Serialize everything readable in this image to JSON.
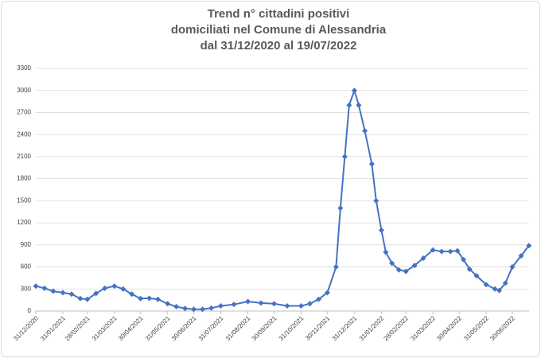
{
  "chart_data": {
    "type": "line",
    "title": [
      "Trend n° cittadini positivi",
      "domiciliati nel Comune di Alessandria",
      "dal 31/12/2020 al 19/07/2022"
    ],
    "x": [
      "2020-12-31",
      "2021-01-10",
      "2021-01-20",
      "2021-01-31",
      "2021-02-10",
      "2021-02-20",
      "2021-02-28",
      "2021-03-10",
      "2021-03-20",
      "2021-03-31",
      "2021-04-10",
      "2021-04-20",
      "2021-04-30",
      "2021-05-10",
      "2021-05-20",
      "2021-05-31",
      "2021-06-10",
      "2021-06-20",
      "2021-06-30",
      "2021-07-10",
      "2021-07-20",
      "2021-07-31",
      "2021-08-15",
      "2021-08-31",
      "2021-09-15",
      "2021-09-30",
      "2021-10-15",
      "2021-10-31",
      "2021-11-10",
      "2021-11-20",
      "2021-11-30",
      "2021-12-10",
      "2021-12-15",
      "2021-12-20",
      "2021-12-25",
      "2021-12-31",
      "2022-01-05",
      "2022-01-12",
      "2022-01-20",
      "2022-01-25",
      "2022-01-31",
      "2022-02-05",
      "2022-02-12",
      "2022-02-20",
      "2022-02-28",
      "2022-03-10",
      "2022-03-20",
      "2022-03-31",
      "2022-04-10",
      "2022-04-20",
      "2022-04-28",
      "2022-05-05",
      "2022-05-12",
      "2022-05-20",
      "2022-05-31",
      "2022-06-10",
      "2022-06-15",
      "2022-06-22",
      "2022-06-30",
      "2022-07-10",
      "2022-07-19"
    ],
    "series": [
      {
        "color": "#4472c4",
        "values": [
          340,
          310,
          270,
          250,
          230,
          170,
          160,
          240,
          310,
          340,
          300,
          230,
          170,
          175,
          160,
          100,
          60,
          35,
          25,
          25,
          40,
          70,
          90,
          130,
          110,
          100,
          70,
          70,
          100,
          160,
          250,
          600,
          1400,
          2100,
          2800,
          3000,
          2800,
          2450,
          2000,
          1500,
          1100,
          800,
          650,
          560,
          540,
          620,
          720,
          830,
          810,
          810,
          820,
          700,
          570,
          480,
          360,
          300,
          280,
          380,
          600,
          750,
          890
        ]
      }
    ],
    "xlim": [
      "2020-12-31",
      "2022-07-31"
    ],
    "xticks": [
      {
        "value": "2020-12-31",
        "label": "31/12/2020"
      },
      {
        "value": "2021-01-31",
        "label": "31/01/2021"
      },
      {
        "value": "2021-02-28",
        "label": "28/02/2021"
      },
      {
        "value": "2021-03-31",
        "label": "31/03/2021"
      },
      {
        "value": "2021-04-30",
        "label": "30/04/2021"
      },
      {
        "value": "2021-05-31",
        "label": "31/05/2021"
      },
      {
        "value": "2021-06-30",
        "label": "30/06/2021"
      },
      {
        "value": "2021-07-31",
        "label": "31/07/2021"
      },
      {
        "value": "2021-08-31",
        "label": "31/08/2021"
      },
      {
        "value": "2021-09-30",
        "label": "30/09/2021"
      },
      {
        "value": "2021-10-31",
        "label": "31/10/2021"
      },
      {
        "value": "2021-11-30",
        "label": "30/11/2021"
      },
      {
        "value": "2021-12-31",
        "label": "31/12/2021"
      },
      {
        "value": "2022-01-31",
        "label": "31/01/2022"
      },
      {
        "value": "2022-02-28",
        "label": "28/02/2022"
      },
      {
        "value": "2022-03-31",
        "label": "31/03/2022"
      },
      {
        "value": "2022-04-30",
        "label": "30/04/2022"
      },
      {
        "value": "2022-05-31",
        "label": "31/05/2022"
      },
      {
        "value": "2022-06-30",
        "label": "30/06/2022"
      }
    ],
    "ylim": [
      0,
      3300
    ],
    "yticks": [
      0,
      300,
      600,
      900,
      1200,
      1500,
      1800,
      2100,
      2400,
      2700,
      3000,
      3300
    ],
    "grid": true
  }
}
